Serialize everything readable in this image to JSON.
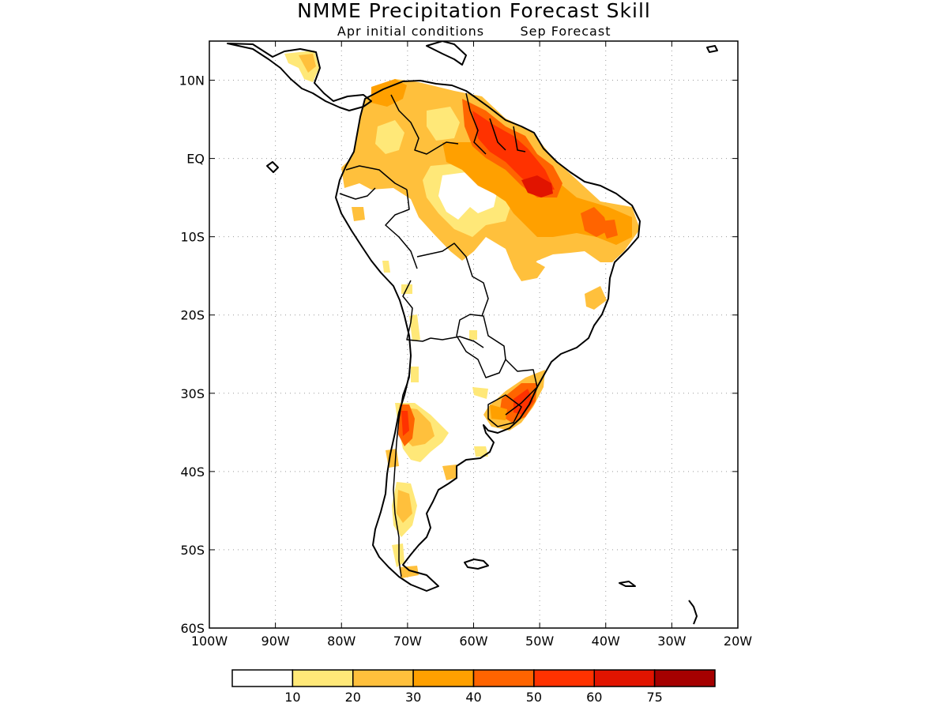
{
  "title": "NMME Precipitation Forecast Skill",
  "subtitle_left": "Apr initial conditions",
  "subtitle_right": "Sep Forecast",
  "map": {
    "lon_range": [
      -100,
      -20
    ],
    "lat_range": [
      -60,
      15
    ],
    "lon_ticks": [
      {
        "value": -100,
        "label": "100W"
      },
      {
        "value": -90,
        "label": "90W"
      },
      {
        "value": -80,
        "label": "80W"
      },
      {
        "value": -70,
        "label": "70W"
      },
      {
        "value": -60,
        "label": "60W"
      },
      {
        "value": -50,
        "label": "50W"
      },
      {
        "value": -40,
        "label": "40W"
      },
      {
        "value": -30,
        "label": "30W"
      },
      {
        "value": -20,
        "label": "20W"
      }
    ],
    "lat_ticks": [
      {
        "value": 10,
        "label": "10N"
      },
      {
        "value": 0,
        "label": "EQ"
      },
      {
        "value": -10,
        "label": "10S"
      },
      {
        "value": -20,
        "label": "20S"
      },
      {
        "value": -30,
        "label": "30S"
      },
      {
        "value": -40,
        "label": "40S"
      },
      {
        "value": -50,
        "label": "50S"
      },
      {
        "value": -60,
        "label": "60S"
      }
    ],
    "grid": "dotted"
  },
  "colorbar": {
    "labels": [
      "10",
      "20",
      "30",
      "40",
      "50",
      "60",
      "75"
    ],
    "colors": [
      "#ffffff",
      "#ffe878",
      "#ffc03c",
      "#ffa000",
      "#ff6400",
      "#ff3200",
      "#e11400",
      "#a50000"
    ]
  },
  "skill_regions": [
    {
      "region": "northern South America",
      "level": 2
    },
    {
      "region": "Colombia-Venezuela",
      "level": 3
    },
    {
      "region": "Amazon basin",
      "level": 3
    },
    {
      "region": "Guianas coast",
      "level": 5
    },
    {
      "region": "Amazon mouth",
      "level": 6
    },
    {
      "region": "NE Brazil",
      "level": 4
    },
    {
      "region": "southern Brazil / Uruguay",
      "level": 5
    },
    {
      "region": "central Chile",
      "level": 5
    },
    {
      "region": "central Argentina",
      "level": 3
    },
    {
      "region": "Patagonia Andes",
      "level": 2
    },
    {
      "region": "Central America",
      "level": 2
    }
  ]
}
